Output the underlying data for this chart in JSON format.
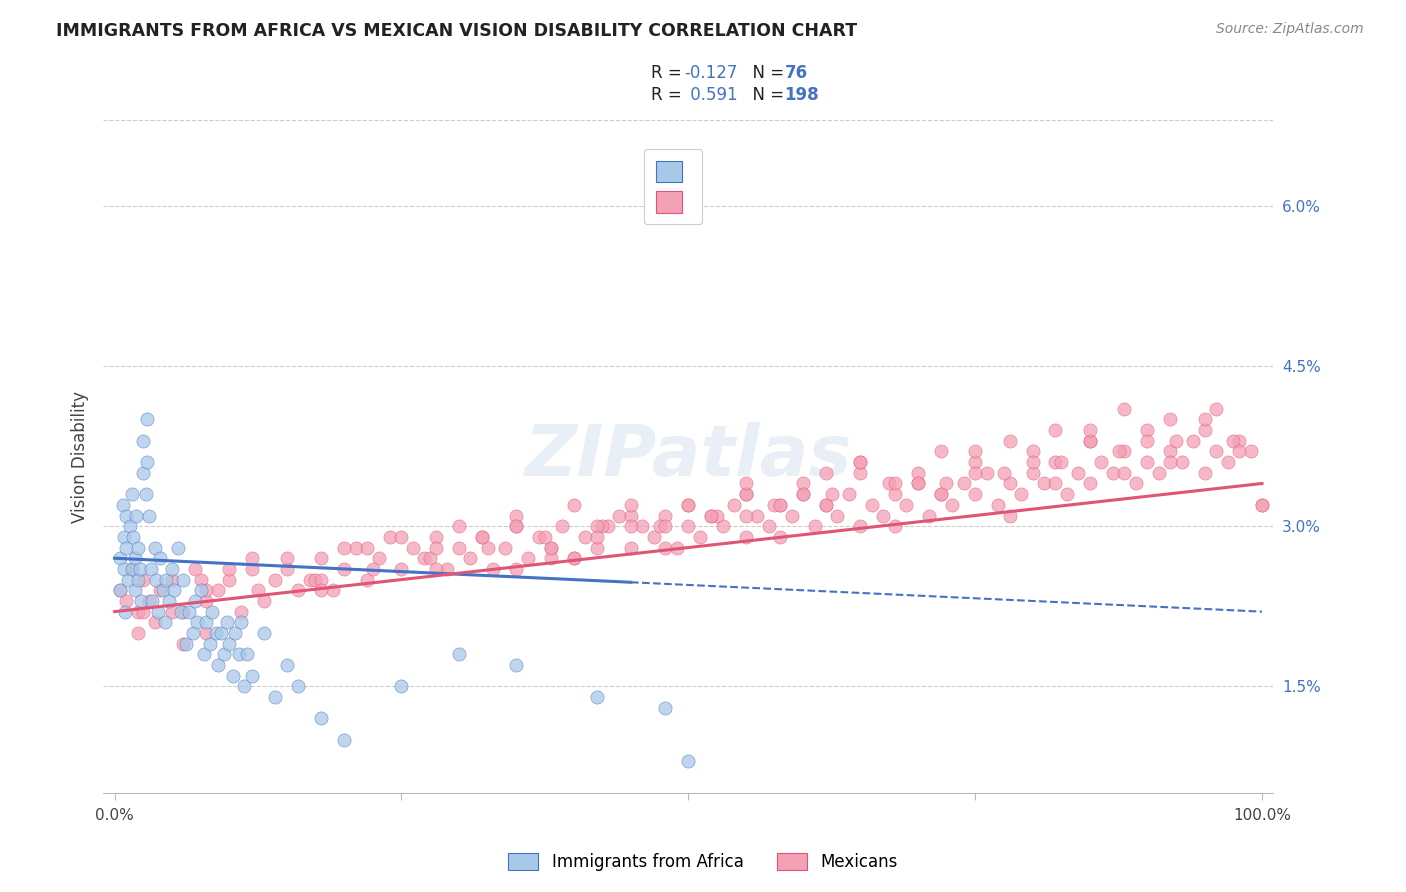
{
  "title": "IMMIGRANTS FROM AFRICA VS MEXICAN VISION DISABILITY CORRELATION CHART",
  "source": "Source: ZipAtlas.com",
  "ylabel": "Vision Disability",
  "color_africa": "#a8c8e8",
  "color_mexico": "#f4a0b5",
  "line_color_africa": "#4472c4",
  "line_color_mexico": "#e05575",
  "background_color": "#ffffff",
  "grid_color": "#cccccc",
  "watermark": "ZIPatlas",
  "legend_text_color": "#4472c4",
  "legend_label_color": "#333333",
  "africa_seed": 12,
  "mexico_seed": 7,
  "xlim": [
    -0.01,
    1.01
  ],
  "ylim": [
    0.005,
    0.068
  ],
  "ytick_vals": [
    0.015,
    0.03,
    0.045,
    0.06
  ],
  "ytick_labels": [
    "1.5%",
    "3.0%",
    "4.5%",
    "6.0%"
  ],
  "africa_trend_intercept": 0.027,
  "africa_trend_slope": -0.005,
  "mexico_trend_intercept": 0.022,
  "mexico_trend_slope": 0.012,
  "africa_x": [
    0.005,
    0.005,
    0.007,
    0.008,
    0.008,
    0.009,
    0.01,
    0.01,
    0.012,
    0.013,
    0.015,
    0.015,
    0.016,
    0.018,
    0.018,
    0.019,
    0.02,
    0.02,
    0.022,
    0.023,
    0.025,
    0.025,
    0.027,
    0.028,
    0.028,
    0.03,
    0.032,
    0.033,
    0.035,
    0.036,
    0.038,
    0.04,
    0.042,
    0.044,
    0.045,
    0.047,
    0.05,
    0.052,
    0.055,
    0.058,
    0.06,
    0.062,
    0.065,
    0.068,
    0.07,
    0.072,
    0.075,
    0.078,
    0.08,
    0.083,
    0.085,
    0.088,
    0.09,
    0.093,
    0.095,
    0.098,
    0.1,
    0.103,
    0.105,
    0.108,
    0.11,
    0.113,
    0.115,
    0.12,
    0.13,
    0.14,
    0.15,
    0.16,
    0.18,
    0.2,
    0.25,
    0.3,
    0.35,
    0.42,
    0.48,
    0.5
  ],
  "africa_y": [
    0.027,
    0.024,
    0.032,
    0.026,
    0.029,
    0.022,
    0.031,
    0.028,
    0.025,
    0.03,
    0.033,
    0.026,
    0.029,
    0.027,
    0.024,
    0.031,
    0.025,
    0.028,
    0.026,
    0.023,
    0.038,
    0.035,
    0.033,
    0.036,
    0.04,
    0.031,
    0.026,
    0.023,
    0.028,
    0.025,
    0.022,
    0.027,
    0.024,
    0.021,
    0.025,
    0.023,
    0.026,
    0.024,
    0.028,
    0.022,
    0.025,
    0.019,
    0.022,
    0.02,
    0.023,
    0.021,
    0.024,
    0.018,
    0.021,
    0.019,
    0.022,
    0.02,
    0.017,
    0.02,
    0.018,
    0.021,
    0.019,
    0.016,
    0.02,
    0.018,
    0.021,
    0.015,
    0.018,
    0.016,
    0.02,
    0.014,
    0.017,
    0.015,
    0.012,
    0.01,
    0.015,
    0.018,
    0.017,
    0.014,
    0.013,
    0.008
  ],
  "mexico_x": [
    0.005,
    0.01,
    0.015,
    0.02,
    0.025,
    0.03,
    0.035,
    0.04,
    0.05,
    0.06,
    0.07,
    0.08,
    0.09,
    0.1,
    0.11,
    0.12,
    0.13,
    0.14,
    0.15,
    0.16,
    0.17,
    0.18,
    0.19,
    0.2,
    0.21,
    0.22,
    0.23,
    0.24,
    0.25,
    0.26,
    0.27,
    0.28,
    0.29,
    0.3,
    0.31,
    0.32,
    0.33,
    0.34,
    0.35,
    0.36,
    0.37,
    0.38,
    0.39,
    0.4,
    0.41,
    0.42,
    0.43,
    0.44,
    0.45,
    0.46,
    0.47,
    0.48,
    0.49,
    0.5,
    0.51,
    0.52,
    0.53,
    0.54,
    0.55,
    0.56,
    0.57,
    0.58,
    0.59,
    0.6,
    0.61,
    0.62,
    0.63,
    0.64,
    0.65,
    0.66,
    0.67,
    0.68,
    0.69,
    0.7,
    0.71,
    0.72,
    0.73,
    0.74,
    0.75,
    0.76,
    0.77,
    0.78,
    0.79,
    0.8,
    0.81,
    0.82,
    0.83,
    0.84,
    0.85,
    0.86,
    0.87,
    0.88,
    0.89,
    0.9,
    0.91,
    0.92,
    0.93,
    0.94,
    0.95,
    0.96,
    0.97,
    0.98,
    0.99,
    1.0,
    0.025,
    0.05,
    0.075,
    0.1,
    0.125,
    0.15,
    0.175,
    0.2,
    0.225,
    0.25,
    0.275,
    0.3,
    0.325,
    0.35,
    0.375,
    0.4,
    0.425,
    0.45,
    0.475,
    0.5,
    0.525,
    0.55,
    0.575,
    0.6,
    0.625,
    0.65,
    0.675,
    0.7,
    0.725,
    0.75,
    0.775,
    0.8,
    0.825,
    0.85,
    0.875,
    0.9,
    0.925,
    0.95,
    0.975,
    1.0,
    0.08,
    0.12,
    0.18,
    0.22,
    0.28,
    0.32,
    0.38,
    0.42,
    0.48,
    0.52,
    0.58,
    0.62,
    0.68,
    0.72,
    0.78,
    0.82,
    0.88,
    0.92,
    0.98,
    0.02,
    0.06,
    0.45,
    0.55,
    0.75,
    0.85,
    0.95,
    0.35,
    0.65,
    0.7,
    0.8,
    0.9,
    0.4,
    0.6,
    0.5,
    0.55,
    0.38,
    0.42,
    0.62,
    0.72,
    0.82,
    0.88,
    0.78,
    0.68,
    0.58,
    0.48,
    0.28,
    0.18,
    0.08,
    0.92,
    0.96,
    0.85,
    0.75,
    0.65,
    0.55,
    0.45,
    0.35
  ],
  "mexico_y": [
    0.024,
    0.023,
    0.026,
    0.022,
    0.025,
    0.023,
    0.021,
    0.024,
    0.025,
    0.022,
    0.026,
    0.023,
    0.024,
    0.025,
    0.022,
    0.026,
    0.023,
    0.025,
    0.026,
    0.024,
    0.025,
    0.027,
    0.024,
    0.026,
    0.028,
    0.025,
    0.027,
    0.029,
    0.026,
    0.028,
    0.027,
    0.029,
    0.026,
    0.028,
    0.027,
    0.029,
    0.026,
    0.028,
    0.03,
    0.027,
    0.029,
    0.028,
    0.03,
    0.027,
    0.029,
    0.028,
    0.03,
    0.031,
    0.028,
    0.03,
    0.029,
    0.031,
    0.028,
    0.03,
    0.029,
    0.031,
    0.03,
    0.032,
    0.029,
    0.031,
    0.03,
    0.032,
    0.031,
    0.033,
    0.03,
    0.032,
    0.031,
    0.033,
    0.03,
    0.032,
    0.031,
    0.033,
    0.032,
    0.034,
    0.031,
    0.033,
    0.032,
    0.034,
    0.033,
    0.035,
    0.032,
    0.034,
    0.033,
    0.035,
    0.034,
    0.036,
    0.033,
    0.035,
    0.034,
    0.036,
    0.035,
    0.037,
    0.034,
    0.036,
    0.035,
    0.037,
    0.036,
    0.038,
    0.035,
    0.037,
    0.036,
    0.038,
    0.037,
    0.032,
    0.022,
    0.022,
    0.025,
    0.026,
    0.024,
    0.027,
    0.025,
    0.028,
    0.026,
    0.029,
    0.027,
    0.03,
    0.028,
    0.031,
    0.029,
    0.032,
    0.03,
    0.031,
    0.03,
    0.032,
    0.031,
    0.033,
    0.032,
    0.034,
    0.033,
    0.035,
    0.034,
    0.035,
    0.034,
    0.036,
    0.035,
    0.037,
    0.036,
    0.038,
    0.037,
    0.039,
    0.038,
    0.039,
    0.038,
    0.032,
    0.024,
    0.027,
    0.025,
    0.028,
    0.026,
    0.029,
    0.027,
    0.03,
    0.028,
    0.031,
    0.029,
    0.032,
    0.03,
    0.033,
    0.031,
    0.034,
    0.035,
    0.036,
    0.037,
    0.02,
    0.019,
    0.03,
    0.033,
    0.035,
    0.038,
    0.04,
    0.026,
    0.036,
    0.034,
    0.036,
    0.038,
    0.027,
    0.033,
    0.032,
    0.031,
    0.028,
    0.029,
    0.035,
    0.037,
    0.039,
    0.041,
    0.038,
    0.034,
    0.032,
    0.03,
    0.028,
    0.024,
    0.02,
    0.04,
    0.041,
    0.039,
    0.037,
    0.036,
    0.034,
    0.032,
    0.03
  ]
}
